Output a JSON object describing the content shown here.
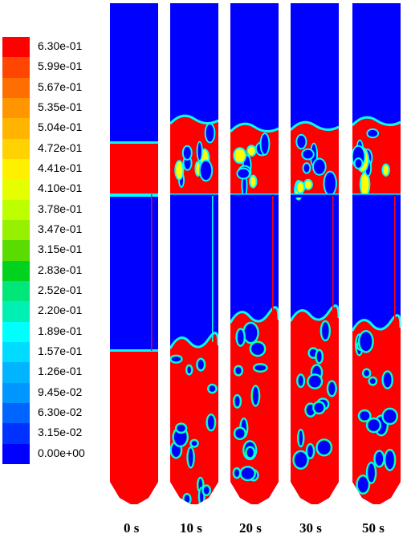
{
  "legend": {
    "labels": [
      "6.30e-01",
      "5.99e-01",
      "5.67e-01",
      "5.35e-01",
      "5.04e-01",
      "4.72e-01",
      "4.41e-01",
      "4.10e-01",
      "3.78e-01",
      "3.47e-01",
      "3.15e-01",
      "2.83e-01",
      "2.52e-01",
      "2.20e-01",
      "1.89e-01",
      "1.57e-01",
      "1.26e-01",
      "9.45e-02",
      "6.30e-02",
      "3.15e-02",
      "0.00e+00"
    ],
    "colors": [
      "#ff0000",
      "#ff4600",
      "#ff6e00",
      "#ff9600",
      "#ffb400",
      "#ffd200",
      "#fff000",
      "#e6ff00",
      "#beff00",
      "#96f000",
      "#5adc00",
      "#00d21e",
      "#00e678",
      "#00f0b4",
      "#00ffff",
      "#00dcff",
      "#00b4ff",
      "#0096ff",
      "#0064ff",
      "#0032ff",
      "#0000ff"
    ]
  },
  "columns": [
    {
      "label": "0 s"
    },
    {
      "label": "10 s"
    },
    {
      "label": "20 s"
    },
    {
      "label": "30 s"
    },
    {
      "label": "50 s"
    }
  ],
  "palette": {
    "low": "#0000ff",
    "high": "#ff0000",
    "mid": "#00ffff",
    "green": "#00ff66",
    "yellow": "#ffff00"
  }
}
